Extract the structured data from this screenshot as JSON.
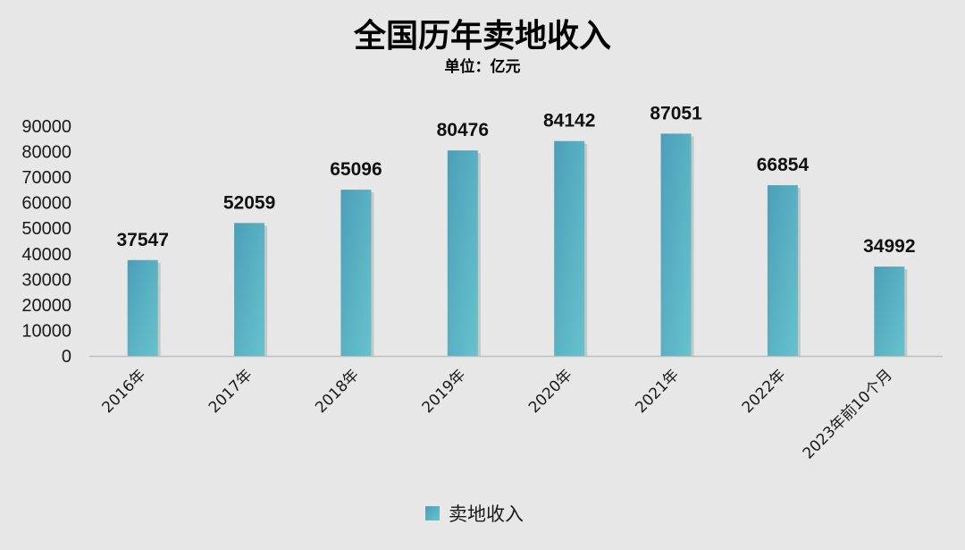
{
  "chart_data": {
    "type": "bar",
    "title": "全国历年卖地收入",
    "subtitle": "单位：亿元",
    "categories": [
      "2016年",
      "2017年",
      "2018年",
      "2019年",
      "2020年",
      "2021年",
      "2022年",
      "2023年前10个月"
    ],
    "series": [
      {
        "name": "卖地收入",
        "values": [
          37547,
          52059,
          65096,
          80476,
          84142,
          87051,
          66854,
          34992
        ],
        "color": "#5ab4c4"
      }
    ],
    "ylim": [
      0,
      90000
    ],
    "yticks": [
      0,
      10000,
      20000,
      30000,
      40000,
      50000,
      60000,
      70000,
      80000,
      90000
    ],
    "grid": false,
    "legend_position": "bottom",
    "data_labels": true
  },
  "colors": {
    "background": "#e7e7e7",
    "bar_light": "#67c2cc",
    "bar_dark": "#4b9fb8",
    "axis": "#bfbfbf"
  }
}
